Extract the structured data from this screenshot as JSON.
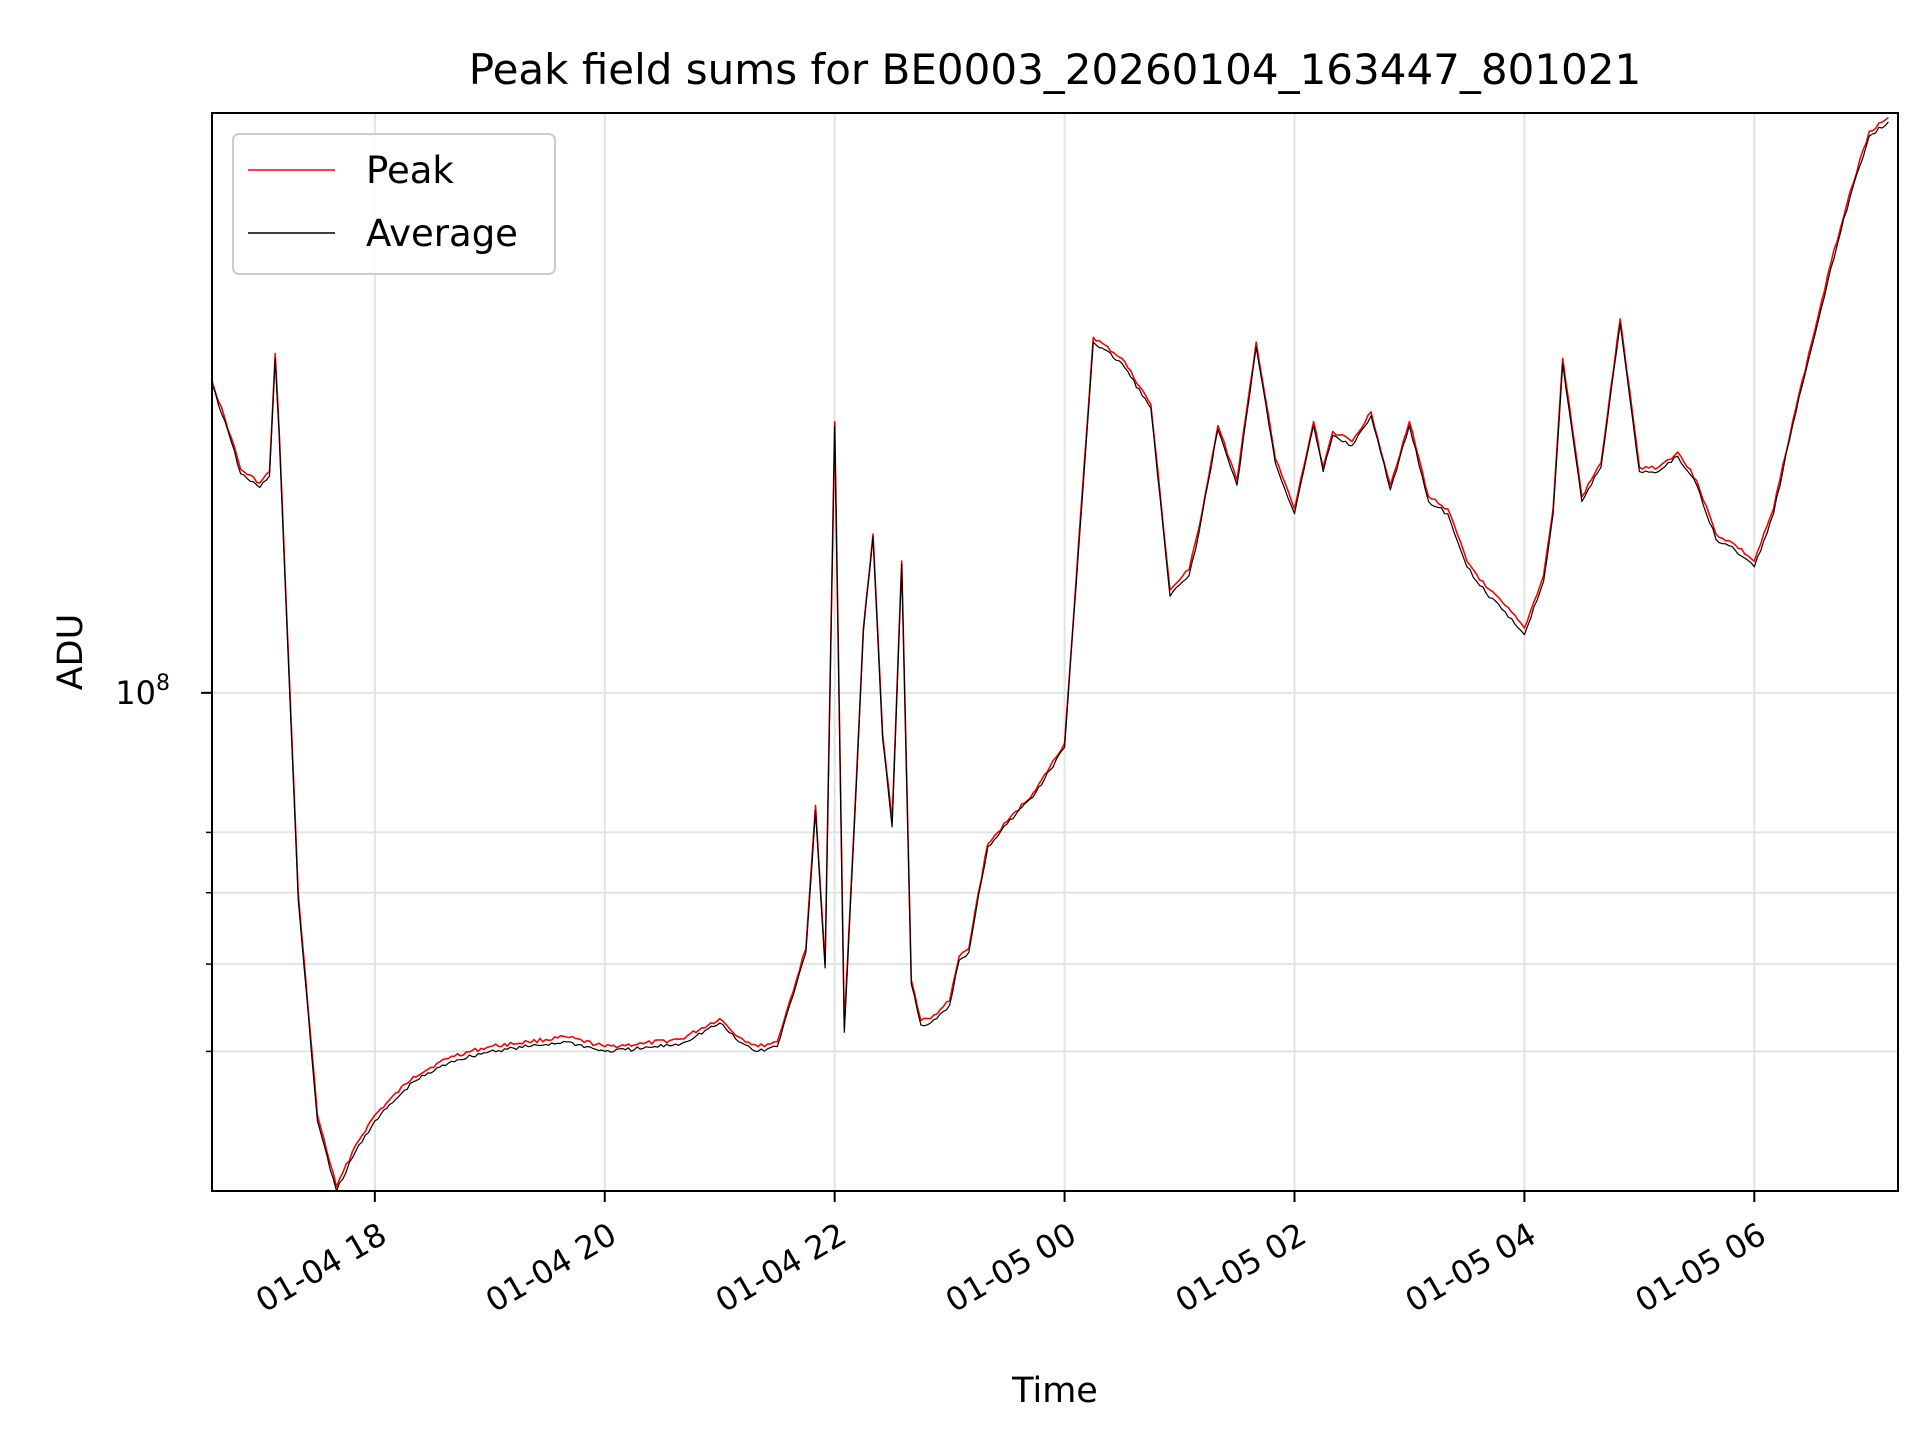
{
  "chart_data": {
    "type": "line",
    "title": "Peak field sums for BE0003_20260104_163447_801021",
    "xlabel": "Time",
    "ylabel": "ADU",
    "yscale": "log",
    "ylim": [
      28000000,
      440000000
    ],
    "xlim": [
      "2026-01-04 16:35",
      "2026-01-05 07:15"
    ],
    "grid": true,
    "legend_position": "top-left",
    "x_ticks": [
      "01-04 18",
      "01-04 20",
      "01-04 22",
      "01-05 00",
      "01-05 02",
      "01-05 04",
      "01-05 06"
    ],
    "y_major_ticks": [
      {
        "label": "10",
        "exponent": "8",
        "value": 100000000
      }
    ],
    "y_minor_ticks": [
      40000000,
      50000000,
      60000000,
      70000000
    ],
    "x": [
      "01-04 16:35",
      "01-04 16:45",
      "01-04 16:50",
      "01-04 17:00",
      "01-04 17:05",
      "01-04 17:08",
      "01-04 17:10",
      "01-04 17:20",
      "01-04 17:30",
      "01-04 17:40",
      "01-04 17:50",
      "01-04 18:00",
      "01-04 18:20",
      "01-04 18:40",
      "01-04 19:00",
      "01-04 19:20",
      "01-04 19:40",
      "01-04 20:00",
      "01-04 20:20",
      "01-04 20:40",
      "01-04 21:00",
      "01-04 21:10",
      "01-04 21:20",
      "01-04 21:30",
      "01-04 21:40",
      "01-04 21:45",
      "01-04 21:50",
      "01-04 21:55",
      "01-04 22:00",
      "01-04 22:05",
      "01-04 22:10",
      "01-04 22:15",
      "01-04 22:20",
      "01-04 22:25",
      "01-04 22:30",
      "01-04 22:35",
      "01-04 22:40",
      "01-04 22:45",
      "01-04 22:50",
      "01-04 22:55",
      "01-04 23:00",
      "01-04 23:05",
      "01-04 23:10",
      "01-04 23:15",
      "01-04 23:20",
      "01-04 23:30",
      "01-04 23:45",
      "01-05 00:00",
      "01-05 00:15",
      "01-05 00:30",
      "01-05 00:45",
      "01-05 00:55",
      "01-05 01:05",
      "01-05 01:10",
      "01-05 01:20",
      "01-05 01:30",
      "01-05 01:40",
      "01-05 01:50",
      "01-05 02:00",
      "01-05 02:10",
      "01-05 02:15",
      "01-05 02:20",
      "01-05 02:30",
      "01-05 02:40",
      "01-05 02:50",
      "01-05 03:00",
      "01-05 03:10",
      "01-05 03:20",
      "01-05 03:30",
      "01-05 03:40",
      "01-05 03:50",
      "01-05 04:00",
      "01-05 04:10",
      "01-05 04:15",
      "01-05 04:20",
      "01-05 04:30",
      "01-05 04:40",
      "01-05 04:50",
      "01-05 05:00",
      "01-05 05:10",
      "01-05 05:20",
      "01-05 05:30",
      "01-05 05:40",
      "01-05 05:50",
      "01-05 06:00",
      "01-05 06:10",
      "01-05 06:20",
      "01-05 06:30",
      "01-05 06:40",
      "01-05 06:50",
      "01-05 07:00",
      "01-05 07:10"
    ],
    "series": [
      {
        "name": "Peak",
        "color": "#ff0000",
        "width": 1.6,
        "values": [
          222000000,
          192000000,
          177000000,
          171000000,
          176000000,
          238000000,
          196000000,
          60000000,
          34000000,
          28300000,
          31500000,
          34000000,
          37500000,
          39500000,
          40500000,
          41000000,
          41500000,
          40500000,
          40800000,
          41300000,
          43500000,
          41500000,
          40500000,
          41000000,
          48000000,
          52000000,
          75000000,
          50000000,
          200000000,
          42500000,
          70000000,
          118000000,
          150000000,
          90000000,
          72000000,
          140000000,
          48000000,
          43300000,
          43500000,
          44500000,
          45500000,
          51000000,
          52000000,
          60000000,
          68000000,
          72000000,
          78000000,
          88000000,
          248000000,
          235000000,
          209000000,
          130000000,
          137000000,
          152000000,
          198000000,
          172000000,
          245000000,
          182000000,
          160000000,
          200000000,
          178000000,
          195000000,
          190000000,
          205000000,
          170000000,
          200000000,
          165000000,
          160000000,
          140000000,
          131000000,
          125000000,
          118000000,
          135000000,
          160000000,
          235000000,
          165000000,
          180000000,
          260000000,
          178000000,
          178000000,
          185000000,
          172000000,
          150000000,
          146000000,
          140000000,
          160000000,
          200000000,
          245000000,
          300000000,
          360000000,
          420000000,
          435000000
        ]
      },
      {
        "name": "Average",
        "color": "#000000",
        "width": 1.2,
        "values": [
          220000000,
          190000000,
          175000000,
          169000000,
          174000000,
          235000000,
          194000000,
          59000000,
          33500000,
          28000000,
          31000000,
          33500000,
          37000000,
          39000000,
          40000000,
          40500000,
          41000000,
          40000000,
          40300000,
          40800000,
          43000000,
          41000000,
          40000000,
          40500000,
          47500000,
          51500000,
          74000000,
          49500000,
          198000000,
          42000000,
          69000000,
          117000000,
          149000000,
          89000000,
          71000000,
          139000000,
          47500000,
          42800000,
          43000000,
          44000000,
          45000000,
          50500000,
          51500000,
          59500000,
          67500000,
          71500000,
          77500000,
          87000000,
          245000000,
          232000000,
          207000000,
          128000000,
          135000000,
          150000000,
          196000000,
          170000000,
          242000000,
          180000000,
          158000000,
          198000000,
          176000000,
          193000000,
          188000000,
          203000000,
          168000000,
          198000000,
          163000000,
          158000000,
          138000000,
          129000000,
          123000000,
          116000000,
          133000000,
          158000000,
          232000000,
          163000000,
          178000000,
          257000000,
          176000000,
          176000000,
          183000000,
          170000000,
          148000000,
          144000000,
          138000000,
          158000000,
          198000000,
          242000000,
          296000000,
          355000000,
          415000000,
          430000000
        ]
      }
    ]
  }
}
